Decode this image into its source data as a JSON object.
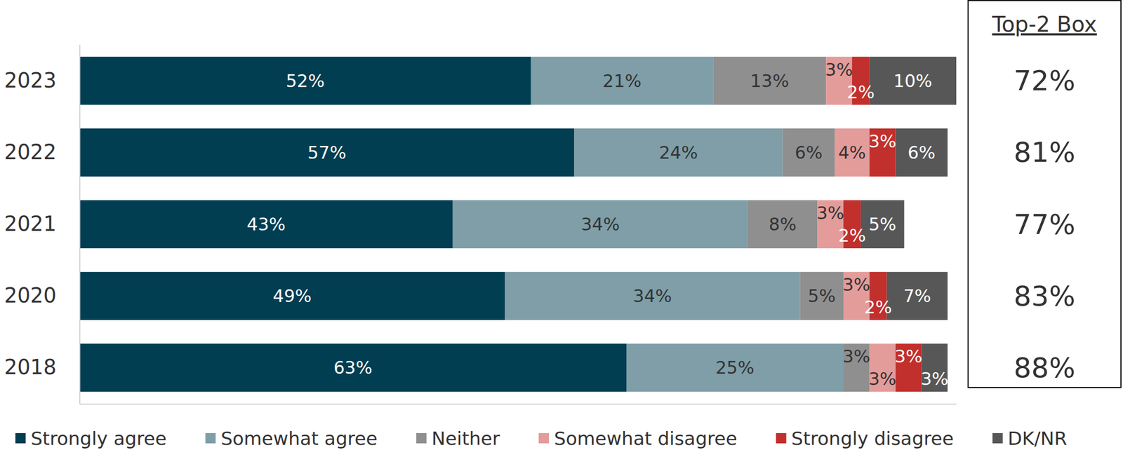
{
  "chart_data": {
    "type": "bar",
    "orientation": "horizontal",
    "stacked": true,
    "data_labels": true,
    "tick_labels": false,
    "categories": [
      "2023",
      "2022",
      "2021",
      "2020",
      "2018"
    ],
    "xlim": [
      0,
      101
    ],
    "series": [
      {
        "name": "Strongly agree",
        "color": "#023e52",
        "values": [
          52,
          57,
          43,
          49,
          63
        ],
        "value_labels": [
          "52%",
          "57%",
          "43%",
          "49%",
          "63%"
        ]
      },
      {
        "name": "Somewhat agree",
        "color": "#7f9ea8",
        "values": [
          21,
          24,
          34,
          34,
          25
        ],
        "value_labels": [
          "21%",
          "24%",
          "34%",
          "34%",
          "25%"
        ]
      },
      {
        "name": "Neither",
        "color": "#8f8f8f",
        "values": [
          13,
          6,
          8,
          5,
          3
        ],
        "value_labels": [
          "13%",
          "6%",
          "8%",
          "5%",
          "3%"
        ]
      },
      {
        "name": "Somewhat disagree",
        "color": "#e39c9a",
        "values": [
          3,
          4,
          3,
          3,
          3
        ],
        "value_labels": [
          "3%",
          "4%",
          "3%",
          "3%",
          "3%"
        ]
      },
      {
        "name": "Strongly disagree",
        "color": "#c1302c",
        "values": [
          2,
          3,
          2,
          2,
          3
        ],
        "value_labels": [
          "2%",
          "3%",
          "2%",
          "2%",
          "3%"
        ]
      },
      {
        "name": "DK/NR",
        "color": "#575757",
        "values": [
          10,
          6,
          5,
          7,
          3
        ],
        "value_labels": [
          "10%",
          "6%",
          "5%",
          "7%",
          "3%"
        ]
      }
    ],
    "top_2_box": {
      "title": "Top-2 Box",
      "values": [
        72,
        81,
        77,
        83,
        88
      ],
      "value_labels": [
        "72%",
        "81%",
        "77%",
        "83%",
        "88%"
      ]
    }
  }
}
